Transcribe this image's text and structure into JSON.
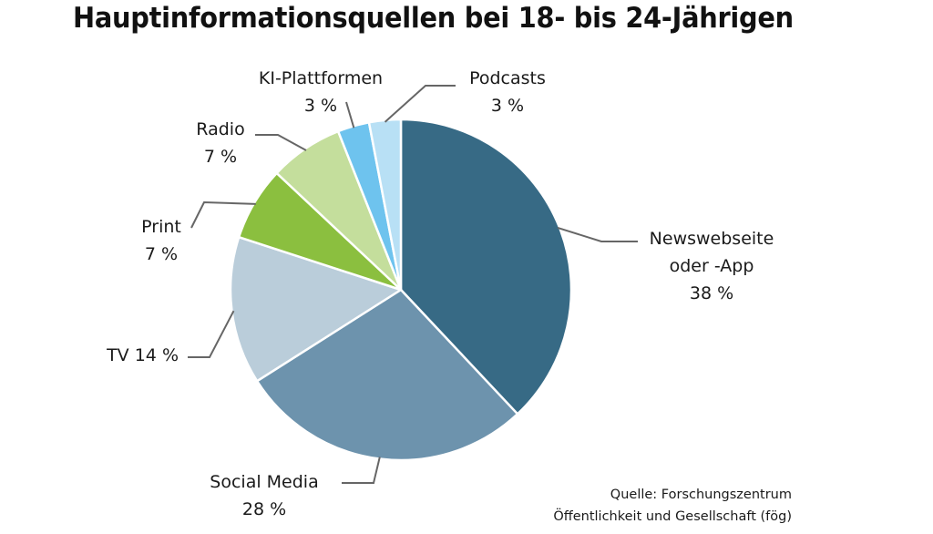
{
  "chart_data": {
    "type": "pie",
    "title": "Hauptinformationsquellen bei 18- bis 24-Jährigen",
    "slices": [
      {
        "name": "Newswebseite oder -App",
        "label_lines": [
          "Newswebseite",
          "oder -App",
          "38 %"
        ],
        "value": 38,
        "color": "#376a85"
      },
      {
        "name": "Social Media",
        "label_lines": [
          "Social Media",
          "28 %"
        ],
        "value": 28,
        "color": "#6d93ad"
      },
      {
        "name": "TV",
        "label_lines": [
          "TV 14 %"
        ],
        "value": 14,
        "color": "#bacdda"
      },
      {
        "name": "Print",
        "label_lines": [
          "Print",
          "7 %"
        ],
        "value": 7,
        "color": "#8bbf3f"
      },
      {
        "name": "Radio",
        "label_lines": [
          "Radio",
          "7 %"
        ],
        "value": 7,
        "color": "#c4de9c"
      },
      {
        "name": "KI-Plattformen",
        "label_lines": [
          "KI-Plattformen",
          "3 %"
        ],
        "value": 3,
        "color": "#6ec3ee"
      },
      {
        "name": "Podcasts",
        "label_lines": [
          "Podcasts",
          "3 %"
        ],
        "value": 3,
        "color": "#b8e0f5"
      }
    ],
    "unit": "%",
    "start": "12 o'clock",
    "direction": "clockwise",
    "source_lines": [
      "Quelle: Forschungszentrum",
      "Öffentlichkeit und Gesellschaft (fög)"
    ]
  }
}
